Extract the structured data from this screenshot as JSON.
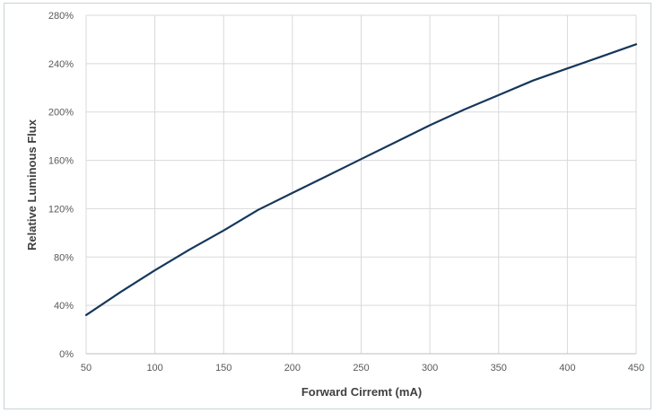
{
  "chart_data": {
    "type": "line",
    "title": "",
    "xlabel": "Forward Cirremt (mA)",
    "ylabel": "Relative Luminous Flux",
    "xlim": [
      50,
      450
    ],
    "ylim": [
      0,
      280
    ],
    "x_ticks": [
      50,
      100,
      150,
      200,
      250,
      300,
      350,
      400,
      450
    ],
    "x_tick_labels": [
      "50",
      "100",
      "150",
      "200",
      "250",
      "300",
      "350",
      "400",
      "450"
    ],
    "y_ticks": [
      0,
      40,
      80,
      120,
      160,
      200,
      240,
      280
    ],
    "y_tick_labels": [
      "0%",
      "40%",
      "80%",
      "120%",
      "160%",
      "200%",
      "240%",
      "280%"
    ],
    "grid": true,
    "line_color": "#16375c",
    "grid_color": "#d9d9d9",
    "series": [
      {
        "x": [
          50,
          75,
          100,
          125,
          150,
          175,
          200,
          225,
          250,
          275,
          300,
          325,
          350,
          375,
          400,
          425,
          450
        ],
        "y": [
          32,
          51,
          69,
          86,
          102,
          119,
          133,
          147,
          161,
          175,
          189,
          202,
          214,
          226,
          236,
          246,
          256
        ]
      }
    ]
  }
}
